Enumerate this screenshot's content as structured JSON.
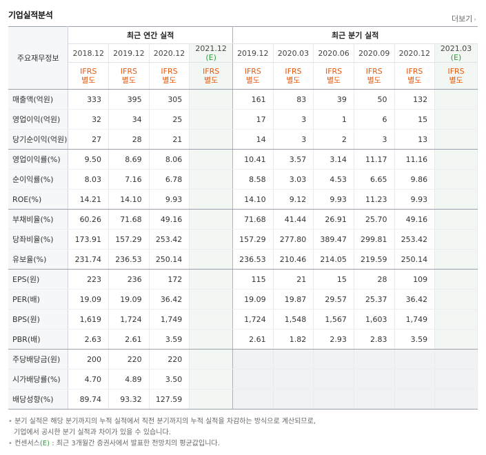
{
  "title": "기업실적분석",
  "more_label": "더보기",
  "header": {
    "row_label": "주요재무정보",
    "annual_group": "최근 연간 실적",
    "quarter_group": "최근 분기 실적",
    "annual_periods": [
      "2018.12",
      "2019.12",
      "2020.12",
      "2021.12"
    ],
    "quarter_periods": [
      "2019.12",
      "2020.03",
      "2020.06",
      "2020.09",
      "2020.12",
      "2021.03"
    ],
    "estimate_mark": "(E)",
    "ifrs_line1": "IFRS",
    "ifrs_line2": "별도"
  },
  "rows": [
    {
      "label": "매출액(억원)",
      "annual": [
        "333",
        "395",
        "305",
        ""
      ],
      "quarter": [
        "161",
        "83",
        "39",
        "50",
        "132",
        ""
      ]
    },
    {
      "label": "영업이익(억원)",
      "annual": [
        "32",
        "34",
        "25",
        ""
      ],
      "quarter": [
        "17",
        "3",
        "1",
        "6",
        "15",
        ""
      ]
    },
    {
      "label": "당기순이익(억원)",
      "annual": [
        "27",
        "28",
        "21",
        ""
      ],
      "quarter": [
        "14",
        "3",
        "2",
        "3",
        "13",
        ""
      ]
    },
    {
      "label": "영업이익률(%)",
      "annual": [
        "9.50",
        "8.69",
        "8.06",
        ""
      ],
      "quarter": [
        "10.41",
        "3.57",
        "3.14",
        "11.17",
        "11.16",
        ""
      ]
    },
    {
      "label": "순이익률(%)",
      "annual": [
        "8.03",
        "7.16",
        "6.78",
        ""
      ],
      "quarter": [
        "8.58",
        "3.03",
        "4.53",
        "6.65",
        "9.86",
        ""
      ]
    },
    {
      "label": "ROE(%)",
      "annual": [
        "14.21",
        "14.10",
        "9.93",
        ""
      ],
      "quarter": [
        "14.10",
        "9.12",
        "9.93",
        "11.23",
        "9.93",
        ""
      ]
    },
    {
      "label": "부채비율(%)",
      "annual": [
        "60.26",
        "71.68",
        "49.16",
        ""
      ],
      "quarter": [
        "71.68",
        "41.44",
        "26.91",
        "25.70",
        "49.16",
        ""
      ]
    },
    {
      "label": "당좌비율(%)",
      "annual": [
        "173.91",
        "157.29",
        "253.42",
        ""
      ],
      "quarter": [
        "157.29",
        "277.80",
        "389.47",
        "299.81",
        "253.42",
        ""
      ]
    },
    {
      "label": "유보율(%)",
      "annual": [
        "231.74",
        "236.53",
        "250.14",
        ""
      ],
      "quarter": [
        "236.53",
        "210.46",
        "214.05",
        "219.59",
        "250.14",
        ""
      ]
    },
    {
      "label": "EPS(원)",
      "annual": [
        "223",
        "236",
        "172",
        ""
      ],
      "quarter": [
        "115",
        "21",
        "15",
        "28",
        "109",
        ""
      ]
    },
    {
      "label": "PER(배)",
      "annual": [
        "19.09",
        "19.09",
        "36.42",
        ""
      ],
      "quarter": [
        "19.09",
        "19.87",
        "29.57",
        "25.37",
        "36.42",
        ""
      ]
    },
    {
      "label": "BPS(원)",
      "annual": [
        "1,619",
        "1,724",
        "1,749",
        ""
      ],
      "quarter": [
        "1,724",
        "1,548",
        "1,567",
        "1,603",
        "1,749",
        ""
      ]
    },
    {
      "label": "PBR(배)",
      "annual": [
        "2.63",
        "2.61",
        "3.59",
        ""
      ],
      "quarter": [
        "2.61",
        "1.82",
        "2.93",
        "2.83",
        "3.59",
        ""
      ]
    },
    {
      "label": "주당배당금(원)",
      "annual": [
        "200",
        "220",
        "220",
        ""
      ],
      "quarter": [
        "",
        "",
        "",
        "",
        "",
        ""
      ]
    },
    {
      "label": "시가배당률(%)",
      "annual": [
        "4.70",
        "4.89",
        "3.50",
        ""
      ],
      "quarter": [
        "",
        "",
        "",
        "",
        "",
        ""
      ]
    },
    {
      "label": "배당성향(%)",
      "annual": [
        "89.74",
        "93.32",
        "127.59",
        ""
      ],
      "quarter": [
        "",
        "",
        "",
        "",
        "",
        ""
      ]
    }
  ],
  "group_end_rows": [
    2,
    5,
    8,
    12
  ],
  "notes": {
    "line1": "분기 실적은 해당 분기까지의 누적 실적에서 직전 분기까지의 누적 실적을 차감하는 방식으로 계산되므로,",
    "line2": "기업에서 공시한 분기 실적과 차이가 있을 수 있습니다.",
    "line3_prefix": "컨센서스",
    "line3_mark": "(E)",
    "line3_suffix": ": 최근 3개월간 증권사에서 발표한 전망치의 평균값입니다."
  },
  "colors": {
    "ifrs": "#e8580c",
    "estimate": "#2a9d3a",
    "estimate_shade": "#f3f7f3",
    "dividend_empty": "#f1f2f4"
  }
}
